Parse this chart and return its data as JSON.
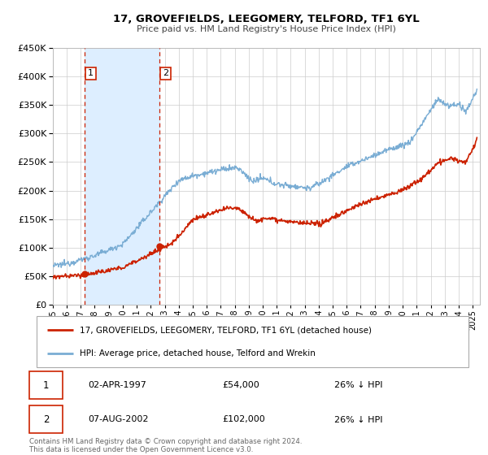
{
  "title": "17, GROVEFIELDS, LEEGOMERY, TELFORD, TF1 6YL",
  "subtitle": "Price paid vs. HM Land Registry's House Price Index (HPI)",
  "ylim": [
    0,
    450000
  ],
  "xlim_start": 1995.0,
  "xlim_end": 2025.5,
  "grid_color": "#cccccc",
  "sale1_date": 1997.25,
  "sale1_price": 54000,
  "sale2_date": 2002.6,
  "sale2_price": 102000,
  "hpi_color": "#7aadd4",
  "price_color": "#cc2200",
  "shade_color": "#ddeeff",
  "legend_line1": "17, GROVEFIELDS, LEEGOMERY, TELFORD, TF1 6YL (detached house)",
  "legend_line2": "HPI: Average price, detached house, Telford and Wrekin",
  "table_row1": [
    "1",
    "02-APR-1997",
    "£54,000",
    "26% ↓ HPI"
  ],
  "table_row2": [
    "2",
    "07-AUG-2002",
    "£102,000",
    "26% ↓ HPI"
  ],
  "footnote1": "Contains HM Land Registry data © Crown copyright and database right 2024.",
  "footnote2": "This data is licensed under the Open Government Licence v3.0.",
  "ytick_values": [
    0,
    50000,
    100000,
    150000,
    200000,
    250000,
    300000,
    350000,
    400000,
    450000
  ]
}
